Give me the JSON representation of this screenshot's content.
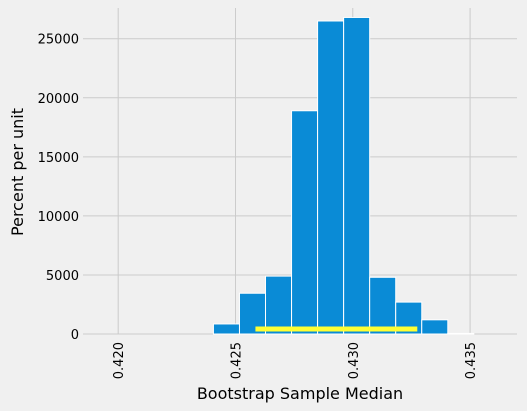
{
  "chart_data": {
    "type": "bar",
    "title": "",
    "xlabel": "Bootstrap Sample Median",
    "ylabel": "Percent per unit",
    "xlim": [
      0.4185,
      0.437
    ],
    "ylim": [
      0,
      27600
    ],
    "grid": true,
    "xticks": [
      {
        "value": 0.42,
        "label": "0.420"
      },
      {
        "value": 0.425,
        "label": "0.425"
      },
      {
        "value": 0.43,
        "label": "0.430"
      },
      {
        "value": 0.435,
        "label": "0.435"
      }
    ],
    "yticks": [
      {
        "value": 0,
        "label": "0"
      },
      {
        "value": 5000,
        "label": "5000"
      },
      {
        "value": 10000,
        "label": "10000"
      },
      {
        "value": 15000,
        "label": "15000"
      },
      {
        "value": 20000,
        "label": "20000"
      },
      {
        "value": 25000,
        "label": "25000"
      }
    ],
    "bin_width": 0.00111,
    "bins": [
      {
        "start": 0.42406,
        "value": 850
      },
      {
        "start": 0.42517,
        "value": 3450
      },
      {
        "start": 0.42628,
        "value": 4900
      },
      {
        "start": 0.42739,
        "value": 18900
      },
      {
        "start": 0.4285,
        "value": 26500
      },
      {
        "start": 0.42961,
        "value": 26800
      },
      {
        "start": 0.43072,
        "value": 4800
      },
      {
        "start": 0.43183,
        "value": 2700
      },
      {
        "start": 0.43294,
        "value": 1200
      },
      {
        "start": 0.43405,
        "value": 50
      }
    ],
    "interval": {
      "left": 0.42585,
      "right": 0.43275,
      "color": "#ffff33"
    },
    "bar_color": "#0a8bd6",
    "grid_color": "#cbcbcb",
    "background": "#f0f0f0"
  }
}
